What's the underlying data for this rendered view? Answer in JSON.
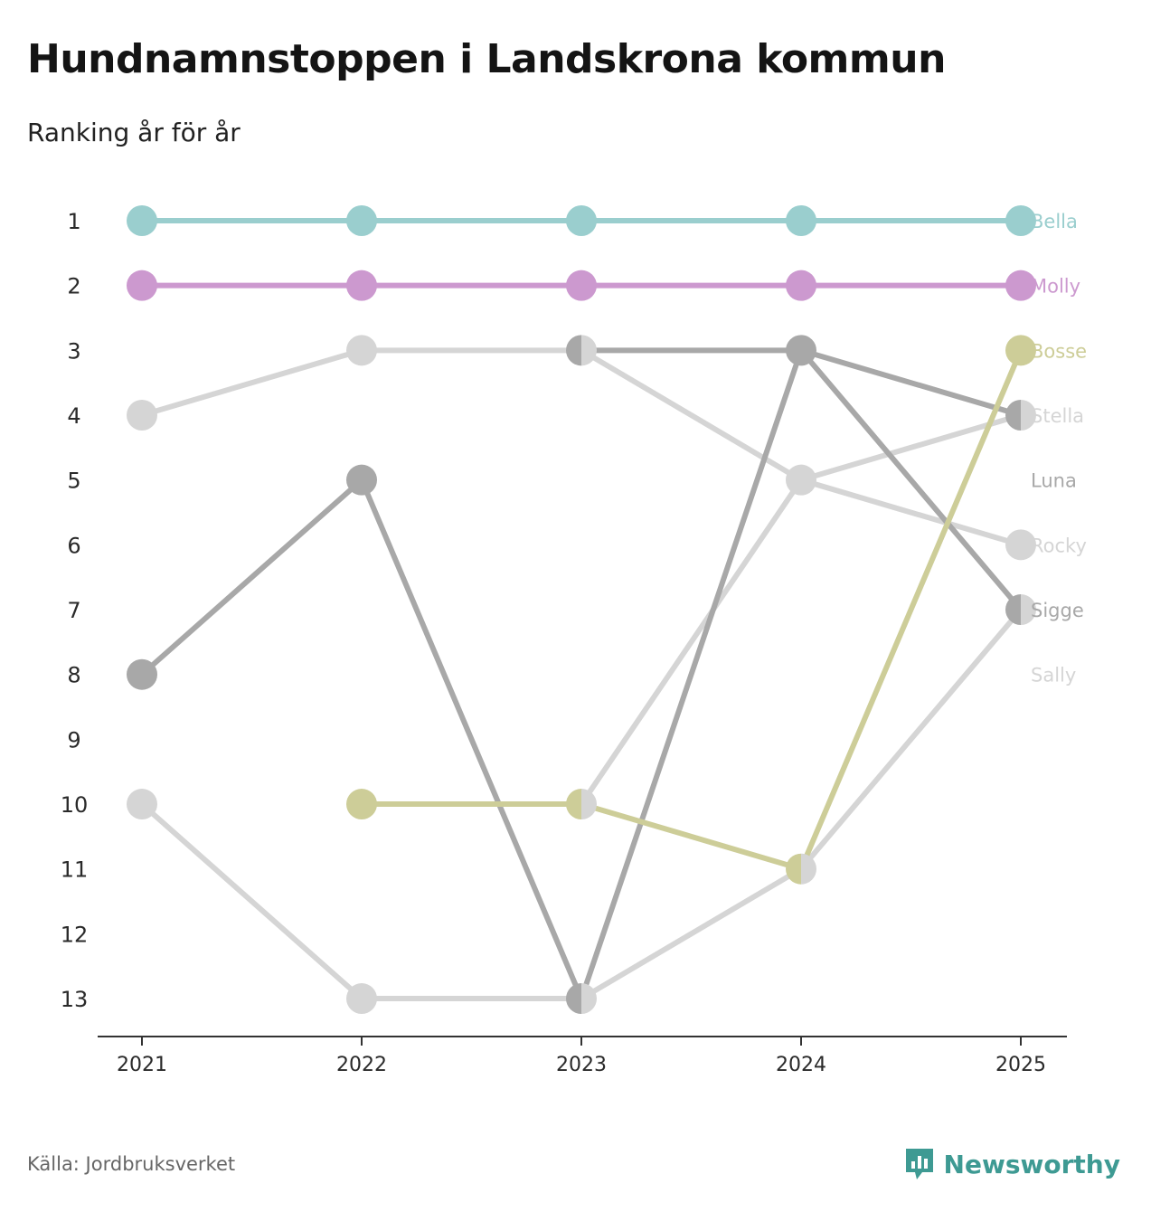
{
  "title": "Hundnamnstoppen i Landskrona kommun",
  "subtitle": "Ranking år för år",
  "source": "Källa: Jordbruksverket",
  "brand": {
    "name": "Newsworthy",
    "icon": "newsworthy-chart-icon",
    "color": "#3e9a93"
  },
  "chart_data": {
    "type": "line",
    "title": "Hundnamnstoppen i Landskrona kommun",
    "subtitle": "Ranking år för år",
    "xlabel": "",
    "ylabel": "",
    "x": [
      "2021",
      "2022",
      "2023",
      "2024",
      "2025"
    ],
    "y_ticks": [
      1,
      2,
      3,
      4,
      5,
      6,
      7,
      8,
      9,
      10,
      11,
      12,
      13
    ],
    "ylim": [
      1,
      13
    ],
    "y_inverted": true,
    "series": [
      {
        "name": "Sally",
        "color": "#d5d5d5",
        "values": [
          10,
          13,
          13,
          11,
          7
        ]
      },
      {
        "name": "Rocky",
        "color": "#d5d5d5",
        "values": [
          4,
          3,
          3,
          5,
          6
        ]
      },
      {
        "name": "Stella",
        "color": "#d5d5d5",
        "values": [
          null,
          null,
          10,
          5,
          4
        ]
      },
      {
        "name": "Sigge",
        "color": "#a8a8a8",
        "values": [
          null,
          null,
          3,
          3,
          7
        ]
      },
      {
        "name": "Luna",
        "color": "#a8a8a8",
        "values": [
          8,
          5,
          13,
          3,
          4
        ]
      },
      {
        "name": "Bosse",
        "color": "#cdcd98",
        "values": [
          null,
          10,
          10,
          11,
          3
        ]
      },
      {
        "name": "Molly",
        "color": "#cc99cf",
        "values": [
          2,
          2,
          2,
          2,
          2
        ]
      },
      {
        "name": "Bella",
        "color": "#9acece",
        "values": [
          1,
          1,
          1,
          1,
          1
        ]
      }
    ],
    "labels": [
      {
        "name": "Bella",
        "rank": 1,
        "color": "#9acece"
      },
      {
        "name": "Molly",
        "rank": 2,
        "color": "#cc99cf"
      },
      {
        "name": "Bosse",
        "rank": 3,
        "color": "#cdcd98"
      },
      {
        "name": "Stella",
        "rank": 4,
        "color": "#d5d5d5"
      },
      {
        "name": "Luna",
        "rank": 5,
        "color": "#a8a8a8"
      },
      {
        "name": "Rocky",
        "rank": 6,
        "color": "#d5d5d5"
      },
      {
        "name": "Sigge",
        "rank": 7,
        "color": "#a8a8a8"
      },
      {
        "name": "Sally",
        "rank": 8,
        "color": "#d5d5d5"
      }
    ]
  }
}
